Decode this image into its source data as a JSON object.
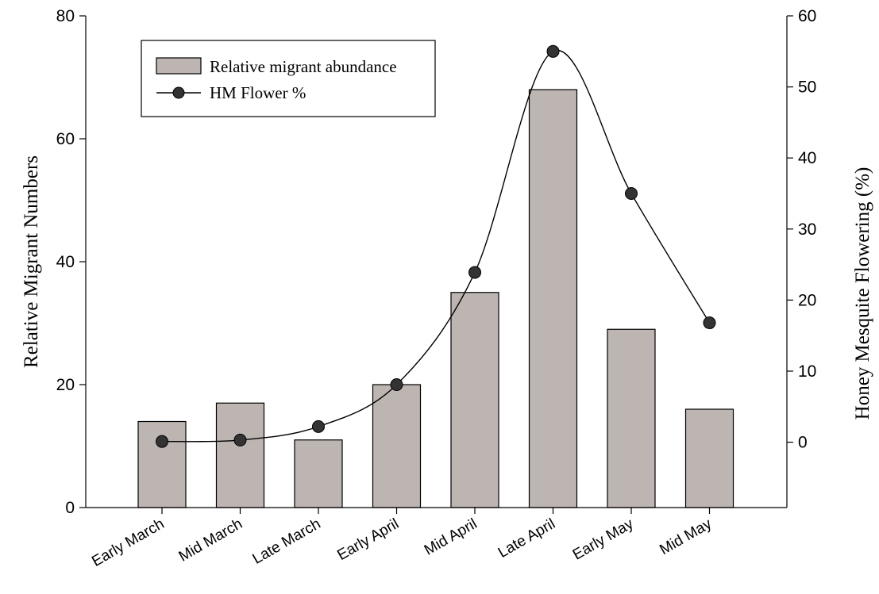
{
  "chart_data": {
    "type": "bar",
    "categories": [
      "Early March",
      "Mid March",
      "Late March",
      "Early April",
      "Mid April",
      "Late April",
      "Early May",
      "Mid May"
    ],
    "series": [
      {
        "name": "Relative migrant abundance",
        "type": "bar",
        "axis": "left",
        "values": [
          14,
          17,
          11,
          20,
          35,
          68,
          29,
          16
        ],
        "color": "#bdb5b2"
      },
      {
        "name": "HM Flower %",
        "type": "line",
        "axis": "right",
        "values": [
          0.1,
          0.3,
          2.2,
          8.1,
          23.9,
          55,
          35,
          16.8
        ],
        "color": "#000000",
        "marker": "filled-circle",
        "smoothed": true
      }
    ],
    "title": "",
    "ylabel": "Relative Migrant Numbers",
    "ylabel_right": "Honey Mesquite Flowering (%)",
    "ylim": [
      0,
      80
    ],
    "ylim_right": [
      -9.2,
      60
    ],
    "yticks": [
      0,
      20,
      40,
      60,
      80
    ],
    "yticks_right": [
      0,
      10,
      20,
      30,
      40,
      50,
      60
    ],
    "grid": false,
    "legend_position": "top-left"
  }
}
